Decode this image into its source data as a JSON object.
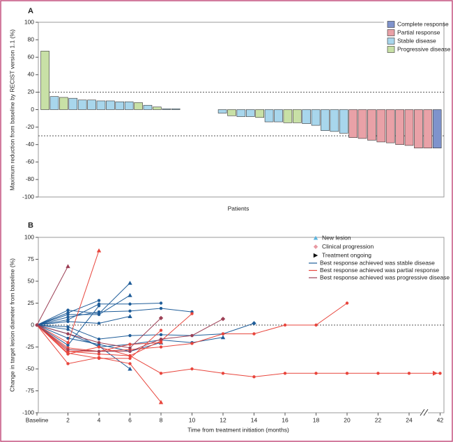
{
  "chart_data": [
    {
      "type": "bar",
      "label": "A",
      "y_label": "Maximum reduction from baseline by RECIST version 1.1 (%)",
      "x_label": "Patients",
      "ylim": [
        -100,
        100
      ],
      "yticks": [
        -100,
        -80,
        -60,
        -40,
        -20,
        0,
        20,
        40,
        60,
        80,
        100
      ],
      "ref_lines": [
        20,
        -30
      ],
      "series": [
        {
          "name": "Complete response",
          "color": "#7f93cc",
          "values": [
            null,
            null,
            null,
            null,
            null,
            null,
            null,
            null,
            null,
            null,
            null,
            null,
            null,
            null,
            null,
            null,
            null,
            null,
            null,
            null,
            null,
            null,
            null,
            null,
            null,
            null,
            null,
            null,
            null,
            null,
            null,
            null,
            null,
            null,
            null,
            null,
            null,
            null,
            null,
            null,
            null,
            null,
            -44
          ]
        },
        {
          "name": "Partial response",
          "color": "#e9a1a7",
          "values": [
            null,
            null,
            null,
            null,
            null,
            null,
            null,
            null,
            null,
            null,
            null,
            null,
            null,
            null,
            null,
            null,
            null,
            null,
            null,
            null,
            null,
            null,
            null,
            null,
            null,
            null,
            null,
            null,
            null,
            null,
            null,
            null,
            null,
            -32,
            -33,
            -35,
            -37,
            -38,
            -40,
            -41,
            -44,
            -44,
            null
          ]
        },
        {
          "name": "Stable disease",
          "color": "#a8d6ec",
          "values": [
            null,
            15,
            null,
            13,
            11,
            11,
            10,
            10,
            9,
            9,
            null,
            5,
            null,
            1,
            1,
            null,
            null,
            null,
            null,
            -4,
            null,
            -8,
            -8,
            null,
            -14,
            -14,
            null,
            null,
            -16,
            -18,
            -24,
            -25,
            -27,
            null,
            null,
            null,
            null,
            null,
            null,
            null,
            null,
            null,
            null
          ]
        },
        {
          "name": "Progressive disease",
          "color": "#c8e0a6",
          "values": [
            67,
            null,
            14,
            null,
            null,
            null,
            null,
            null,
            null,
            null,
            8,
            null,
            3,
            null,
            null,
            null,
            null,
            null,
            null,
            null,
            -7,
            null,
            null,
            -9,
            null,
            null,
            -15,
            -15,
            null,
            null,
            null,
            null,
            null,
            null,
            null,
            null,
            null,
            null,
            null,
            null,
            null,
            null,
            null
          ]
        }
      ]
    },
    {
      "type": "line",
      "label": "B",
      "y_label": "Change in target lesion diameter from baseline (%)",
      "x_label": "Time from treatment initiation (months)",
      "categories": [
        "Baseline",
        "2",
        "4",
        "6",
        "8",
        "10",
        "12",
        "14",
        "16",
        "18",
        "20",
        "22",
        "24",
        "42"
      ],
      "ylim": [
        -100,
        100
      ],
      "yticks": [
        -100,
        -75,
        -50,
        -25,
        0,
        25,
        50,
        75,
        100
      ],
      "ref_lines": [
        0
      ],
      "marker_legend": [
        {
          "name": "New lesion",
          "shape": "triangle",
          "color": "#5ab4de"
        },
        {
          "name": "Clinical progression",
          "shape": "diamond",
          "color": "#e89aa3"
        },
        {
          "name": "Treatment ongoing",
          "shape": "arrow",
          "color": "#111111"
        }
      ],
      "series": [
        {
          "name": "Best response achieved was stable disease",
          "color": "#1f5d99",
          "lines": [
            {
              "values": [
                0,
                17,
                13,
                48,
                null,
                null,
                null,
                null,
                null,
                null,
                null,
                null,
                null,
                null
              ],
              "end": "triangle"
            },
            {
              "values": [
                0,
                14,
                28,
                null,
                null,
                null,
                null,
                null,
                null,
                null,
                null,
                null,
                null,
                null
              ],
              "end": null
            },
            {
              "values": [
                0,
                12,
                12,
                34,
                null,
                null,
                null,
                null,
                null,
                null,
                null,
                null,
                null,
                null
              ],
              "end": "triangle"
            },
            {
              "values": [
                0,
                9,
                15,
                16,
                19,
                15,
                null,
                null,
                null,
                null,
                null,
                null,
                null,
                null
              ],
              "end": null
            },
            {
              "values": [
                0,
                6,
                24,
                24,
                25,
                null,
                null,
                null,
                null,
                null,
                null,
                null,
                null,
                null
              ],
              "end": null
            },
            {
              "values": [
                0,
                4,
                2,
                10,
                null,
                null,
                null,
                null,
                null,
                null,
                null,
                null,
                null,
                null
              ],
              "end": "triangle"
            },
            {
              "values": [
                0,
                -2,
                -16,
                -12,
                -11,
                -12,
                -10,
                2,
                null,
                null,
                null,
                null,
                null,
                null
              ],
              "end": "diamond"
            },
            {
              "values": [
                0,
                -10,
                -24,
                -50,
                null,
                null,
                null,
                null,
                null,
                null,
                null,
                null,
                null,
                null
              ],
              "end": "triangle"
            },
            {
              "values": [
                0,
                -23,
                22,
                null,
                null,
                null,
                null,
                null,
                null,
                null,
                null,
                null,
                null,
                null
              ],
              "end": null
            },
            {
              "values": [
                0,
                -15,
                -22,
                -30,
                -20,
                null,
                null,
                null,
                null,
                null,
                null,
                null,
                null,
                null
              ],
              "end": "triangle"
            },
            {
              "values": [
                0,
                -5,
                -25,
                -22,
                -17,
                -20,
                -14,
                null,
                null,
                null,
                null,
                null,
                null,
                null
              ],
              "end": "triangle"
            }
          ]
        },
        {
          "name": "Best response achieved was partial response",
          "color": "#e8453c",
          "lines": [
            {
              "values": [
                0,
                -20,
                85,
                null,
                null,
                null,
                null,
                null,
                null,
                null,
                null,
                null,
                null,
                null
              ],
              "end": "triangle"
            },
            {
              "values": [
                0,
                -30,
                -30,
                -28,
                -25,
                -21,
                -10,
                -10,
                0,
                0,
                25,
                null,
                null,
                null
              ],
              "end": null
            },
            {
              "values": [
                0,
                -30,
                -33,
                -35,
                -55,
                -50,
                -55,
                -59,
                -55,
                -55,
                -55,
                -55,
                -55,
                -55
              ],
              "end": "arrow"
            },
            {
              "values": [
                0,
                -44,
                -37,
                -44,
                -88,
                null,
                null,
                null,
                null,
                null,
                null,
                null,
                null,
                null
              ],
              "end": "triangle"
            },
            {
              "values": [
                0,
                -33,
                -25,
                -35,
                -18,
                13,
                null,
                null,
                null,
                null,
                null,
                null,
                null,
                null
              ],
              "end": null
            },
            {
              "values": [
                0,
                -32,
                -38,
                -38,
                -6,
                null,
                null,
                null,
                null,
                null,
                null,
                null,
                null,
                null
              ],
              "end": null
            },
            {
              "values": [
                0,
                -26,
                -30,
                -22,
                -20,
                null,
                null,
                null,
                null,
                null,
                null,
                null,
                null,
                null
              ],
              "end": null
            }
          ]
        },
        {
          "name": "Best response achieved was progressive disease",
          "color": "#9c3f55",
          "lines": [
            {
              "values": [
                0,
                67,
                null,
                null,
                null,
                null,
                null,
                null,
                null,
                null,
                null,
                null,
                null,
                null
              ],
              "end": "triangle"
            },
            {
              "values": [
                0,
                -10,
                -20,
                -26,
                8,
                null,
                null,
                null,
                null,
                null,
                null,
                null,
                null,
                null
              ],
              "end": "diamond"
            },
            {
              "values": [
                0,
                -28,
                -30,
                -30,
                -16,
                -12,
                7,
                null,
                null,
                null,
                null,
                null,
                null,
                null
              ],
              "end": "diamond"
            }
          ]
        }
      ]
    }
  ]
}
